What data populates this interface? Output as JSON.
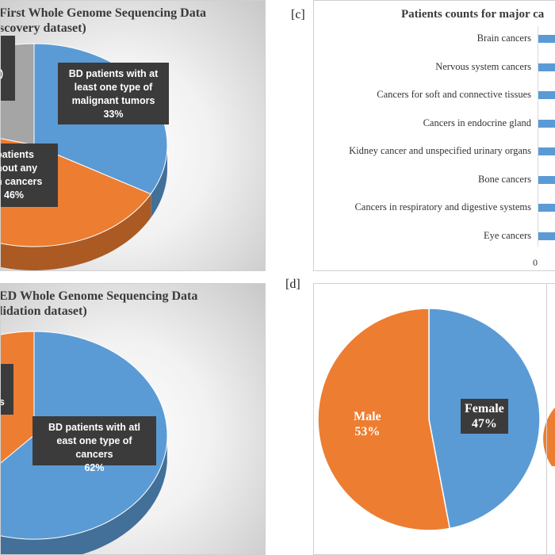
{
  "chart_data": [
    {
      "type": "pie",
      "panel": "",
      "title_lines": [
        "First Whole Genome Sequencing Data",
        "scovery dataset)"
      ],
      "slices": [
        {
          "label": "BD patients with at least one type of malignant tumors",
          "percent": 33,
          "color": "#5b9bd5"
        },
        {
          "label": "patients hout any n cancers",
          "percent": 46,
          "color": "#ed7d31"
        },
        {
          "label": "s s)",
          "percent": 21,
          "color": "#a5a5a5"
        }
      ],
      "labels": {
        "blue_lines": [
          "BD patients with at",
          "least one type of",
          "malignant tumors",
          "33%"
        ],
        "orange_lines": [
          "patients",
          "hout any",
          "n cancers",
          "46%"
        ],
        "gray_lines": [
          "s",
          "",
          "s)"
        ]
      }
    },
    {
      "type": "bar",
      "panel": "[c]",
      "title": "Patients counts for major ca",
      "categories": [
        "Brain cancers",
        "Nervous system cancers",
        "Cancers for soft and connective tissues",
        "Cancers in endocrine gland",
        "Kidney cancer and unspecified urinary organs",
        "Bone cancers",
        "Cancers in  respiratory and digestive systems",
        "Eye cancers"
      ],
      "x_tick_labels": [
        "0"
      ],
      "orientation": "horizontal",
      "color": "#5b9bd5"
    },
    {
      "type": "pie",
      "panel": "",
      "title_lines": [
        "ED Whole Genome Sequencing Data",
        "lidation dataset)"
      ],
      "slices": [
        {
          "label": "BD patients with atl east one type of cancers",
          "percent": 62,
          "color": "#5b9bd5"
        },
        {
          "label": "s y ers",
          "percent": 38,
          "color": "#ed7d31"
        }
      ],
      "labels": {
        "blue_lines": [
          "BD patients with atl",
          "east one type of cancers",
          "62%"
        ],
        "orange_lines": [
          "s",
          "y",
          "ers"
        ]
      }
    },
    {
      "type": "pie",
      "panel": "[d]",
      "slices": [
        {
          "label": "Female",
          "percent": 47,
          "color": "#5b9bd5"
        },
        {
          "label": "Male",
          "percent": 53,
          "color": "#ed7d31"
        }
      ],
      "labels": {
        "female_lines": [
          "Female",
          "47%"
        ],
        "male_lines": [
          "Male",
          "53%"
        ]
      }
    }
  ]
}
